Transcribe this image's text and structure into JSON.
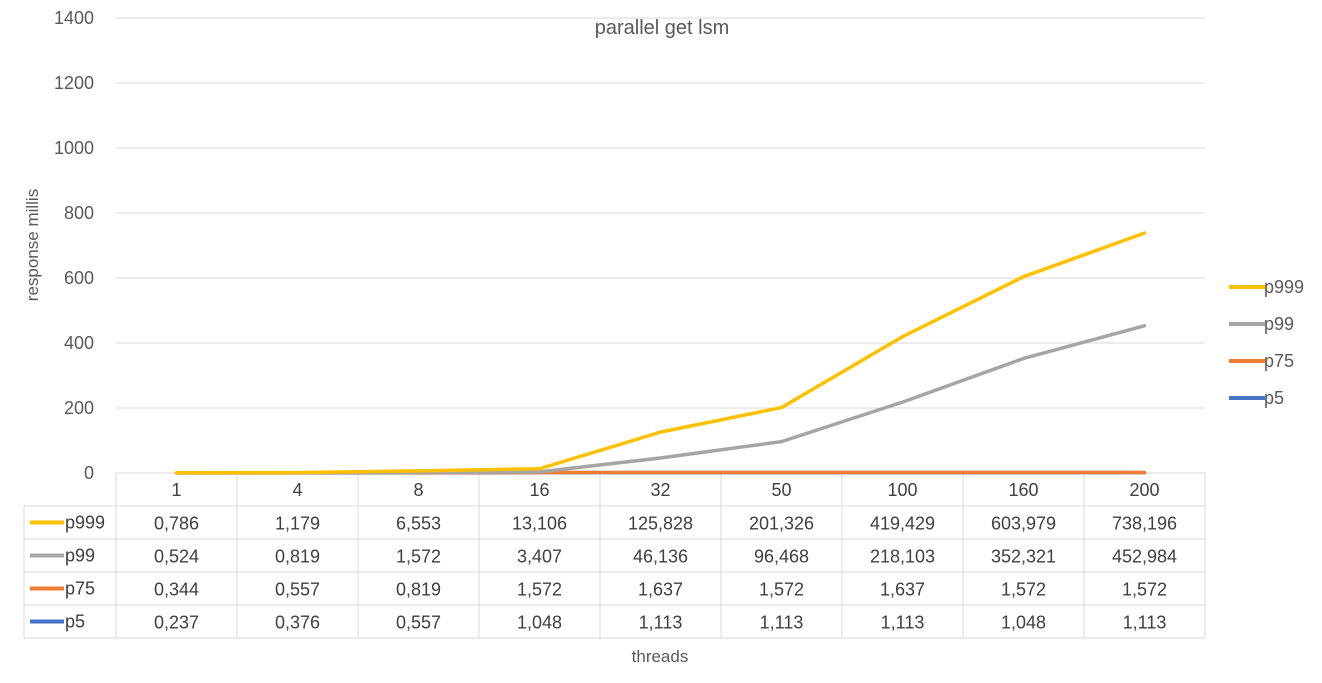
{
  "chart_data": {
    "type": "line",
    "title": "parallel get lsm",
    "xlabel": "threads",
    "ylabel": "response millis",
    "ylim": [
      0,
      1400
    ],
    "yticks": [
      0,
      200,
      400,
      600,
      800,
      1000,
      1200,
      1400
    ],
    "categories": [
      "1",
      "4",
      "8",
      "16",
      "32",
      "50",
      "100",
      "160",
      "200"
    ],
    "grid": true,
    "legend_position": "right",
    "series": [
      {
        "name": "p999",
        "color": "#FFC000",
        "values": [
          0.786,
          1.179,
          6.553,
          13.106,
          125.828,
          201.326,
          419.429,
          603.979,
          738.196
        ],
        "labels": [
          "0,786",
          "1,179",
          "6,553",
          "13,106",
          "125,828",
          "201,326",
          "419,429",
          "603,979",
          "738,196"
        ]
      },
      {
        "name": "p99",
        "color": "#A5A5A5",
        "values": [
          0.524,
          0.819,
          1.572,
          3.407,
          46.136,
          96.468,
          218.103,
          352.321,
          452.984
        ],
        "labels": [
          "0,524",
          "0,819",
          "1,572",
          "3,407",
          "46,136",
          "96,468",
          "218,103",
          "352,321",
          "452,984"
        ]
      },
      {
        "name": "p75",
        "color": "#ED7D31",
        "values": [
          0.344,
          0.557,
          0.819,
          1.572,
          1.637,
          1.572,
          1.637,
          1.572,
          1.572
        ],
        "labels": [
          "0,344",
          "0,557",
          "0,819",
          "1,572",
          "1,637",
          "1,572",
          "1,637",
          "1,572",
          "1,572"
        ]
      },
      {
        "name": "p5",
        "color": "#4472C4",
        "values": [
          0.237,
          0.376,
          0.557,
          1.048,
          1.113,
          1.113,
          1.113,
          1.048,
          1.113
        ],
        "labels": [
          "0,237",
          "0,376",
          "0,557",
          "1,048",
          "1,113",
          "1,113",
          "1,113",
          "1,048",
          "1,113"
        ]
      }
    ],
    "legend_order": [
      "p999",
      "p99",
      "p75",
      "p5"
    ]
  }
}
